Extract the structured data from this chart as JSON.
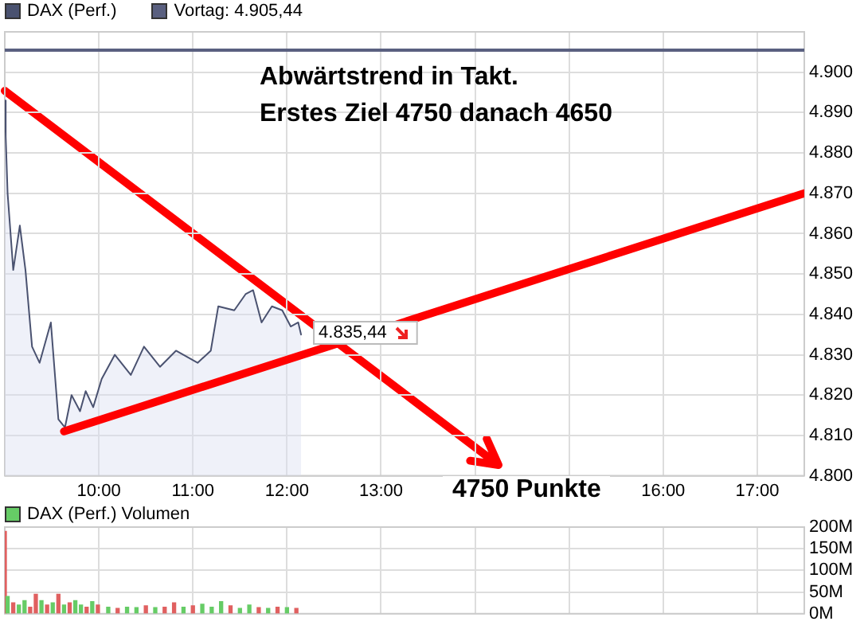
{
  "chart_data": [
    {
      "type": "area",
      "legend": "top left",
      "grid": true,
      "marker": "none",
      "line_style": "solid",
      "xlim": [
        9,
        17.5
      ],
      "xticks": [
        {
          "value": 10,
          "label": "10:00"
        },
        {
          "value": 11,
          "label": "11:00"
        },
        {
          "value": 12,
          "label": "12:00"
        },
        {
          "value": 13,
          "label": "13:00"
        },
        {
          "value": 14,
          "label": null
        },
        {
          "value": 15,
          "label": null
        },
        {
          "value": 16,
          "label": "16:00"
        },
        {
          "value": 17,
          "label": "17:00"
        }
      ],
      "ylim": [
        4800,
        4910
      ],
      "yticks": [
        {
          "value": 4800,
          "label": "4.800"
        },
        {
          "value": 4810,
          "label": "4.810"
        },
        {
          "value": 4820,
          "label": "4.820"
        },
        {
          "value": 4830,
          "label": "4.830"
        },
        {
          "value": 4840,
          "label": "4.840"
        },
        {
          "value": 4850,
          "label": "4.850"
        },
        {
          "value": 4860,
          "label": "4.860"
        },
        {
          "value": 4870,
          "label": "4.870"
        },
        {
          "value": 4880,
          "label": "4.880"
        },
        {
          "value": 4890,
          "label": "4.890"
        },
        {
          "value": 4900,
          "label": "4.900"
        }
      ],
      "series": [
        {
          "name": "DAX (Perf.)",
          "color": "#4a5270",
          "x": [
            9.0,
            9.01,
            9.03,
            9.09,
            9.16,
            9.22,
            9.29,
            9.37,
            9.49,
            9.57,
            9.64,
            9.71,
            9.8,
            9.86,
            9.94,
            10.03,
            10.17,
            10.34,
            10.48,
            10.65,
            10.82,
            11.05,
            11.19,
            11.27,
            11.44,
            11.56,
            11.64,
            11.73,
            11.84,
            11.95,
            12.04,
            12.12,
            12.15
          ],
          "values": [
            4893,
            4884,
            4870,
            4851,
            4862,
            4851,
            4832,
            4828,
            4838,
            4814,
            4812,
            4820,
            4816,
            4821,
            4817,
            4824,
            4830,
            4825,
            4832,
            4827,
            4831,
            4828,
            4831,
            4842,
            4841,
            4845,
            4846,
            4838,
            4842,
            4841,
            4837,
            4838,
            4835
          ]
        },
        {
          "type": "line",
          "color": "#ff0000",
          "x": [
            9.63,
            17.5
          ],
          "values": [
            4811,
            4870
          ]
        }
      ],
      "ref_lines": [
        {
          "axis": "y",
          "value": 4905.44,
          "label": "Vortag: 4.905,44",
          "color": "#5a6080"
        }
      ],
      "annotations": [
        "Abwärtstrend in Takt.",
        "Erstes Ziel 4750 danach 4650",
        "4750  Punkte",
        {
          "text": "4.835,44",
          "x": 12.15,
          "y": 4835.44
        }
      ]
    },
    {
      "type": "bar",
      "legend": "top left",
      "grid": true,
      "tick_labels": "y",
      "xlim": [
        9,
        17.5
      ],
      "xticks": [
        {
          "value": 10,
          "label": null
        },
        {
          "value": 11,
          "label": null
        },
        {
          "value": 12,
          "label": null
        },
        {
          "value": 13,
          "label": null
        },
        {
          "value": 14,
          "label": null
        },
        {
          "value": 15,
          "label": null
        },
        {
          "value": 16,
          "label": null
        },
        {
          "value": 17,
          "label": null
        }
      ],
      "ylim": [
        0,
        200
      ],
      "yticks": [
        {
          "value": 0,
          "label": "0M"
        },
        {
          "value": 50,
          "label": "50M"
        },
        {
          "value": 100,
          "label": "100M"
        },
        {
          "value": 150,
          "label": "150M"
        },
        {
          "value": 200,
          "label": "200M"
        }
      ],
      "series": [
        {
          "name": "DAX (Perf.) Volumen",
          "color": "#66cc66",
          "x": [
            9.0,
            9.03,
            9.09,
            9.15,
            9.21,
            9.27,
            9.33,
            9.39,
            9.45,
            9.51,
            9.57,
            9.63,
            9.69,
            9.75,
            9.81,
            9.87,
            9.93,
            9.99,
            10.1,
            10.2,
            10.3,
            10.4,
            10.5,
            10.6,
            10.7,
            10.8,
            10.9,
            11.0,
            11.1,
            11.2,
            11.3,
            11.4,
            11.5,
            11.6,
            11.7,
            11.8,
            11.9,
            12.0,
            12.1
          ],
          "values": [
            190,
            40,
            25,
            20,
            30,
            15,
            45,
            30,
            20,
            25,
            45,
            20,
            25,
            30,
            20,
            15,
            28,
            20,
            15,
            12,
            15,
            14,
            18,
            14,
            15,
            25,
            15,
            18,
            22,
            15,
            28,
            18,
            12,
            20,
            14,
            12,
            15,
            14,
            12
          ],
          "colors": [
            "#e06060",
            "#66cc66",
            "#e06060",
            "#66cc66",
            "#66cc66",
            "#e06060",
            "#e06060",
            "#66cc66",
            "#e06060",
            "#66cc66",
            "#e06060",
            "#66cc66",
            "#e06060",
            "#66cc66",
            "#66cc66",
            "#e06060",
            "#66cc66",
            "#e06060",
            "#66cc66",
            "#e06060",
            "#66cc66",
            "#66cc66",
            "#e06060",
            "#66cc66",
            "#e06060",
            "#e06060",
            "#66cc66",
            "#e06060",
            "#66cc66",
            "#66cc66",
            "#66cc66",
            "#e06060",
            "#66cc66",
            "#66cc66",
            "#e06060",
            "#66cc66",
            "#e06060",
            "#66cc66",
            "#e06060"
          ]
        }
      ]
    }
  ]
}
